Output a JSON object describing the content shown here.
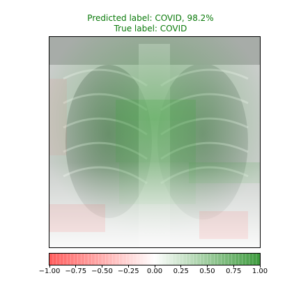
{
  "header": {
    "predicted_label": "Predicted label: COVID, 98.2%",
    "true_label": "True label: COVID",
    "text_color": "#0a7a0a"
  },
  "image": {
    "description_icon": "chest-xray-icon",
    "overlay_positive_color": "#2e9a2e",
    "overlay_negative_color": "#ff5c5c"
  },
  "colorbar": {
    "min": -1.0,
    "max": 1.0,
    "colors": [
      "#ff5c5c",
      "#ffffff",
      "#3c9a3c"
    ],
    "ticks": [
      "−1.00",
      "−0.75",
      "−0.50",
      "−0.25",
      "0.00",
      "0.25",
      "0.50",
      "0.75",
      "1.00"
    ],
    "tick_values": [
      -1.0,
      -0.75,
      -0.5,
      -0.25,
      0.0,
      0.25,
      0.5,
      0.75,
      1.0
    ]
  }
}
